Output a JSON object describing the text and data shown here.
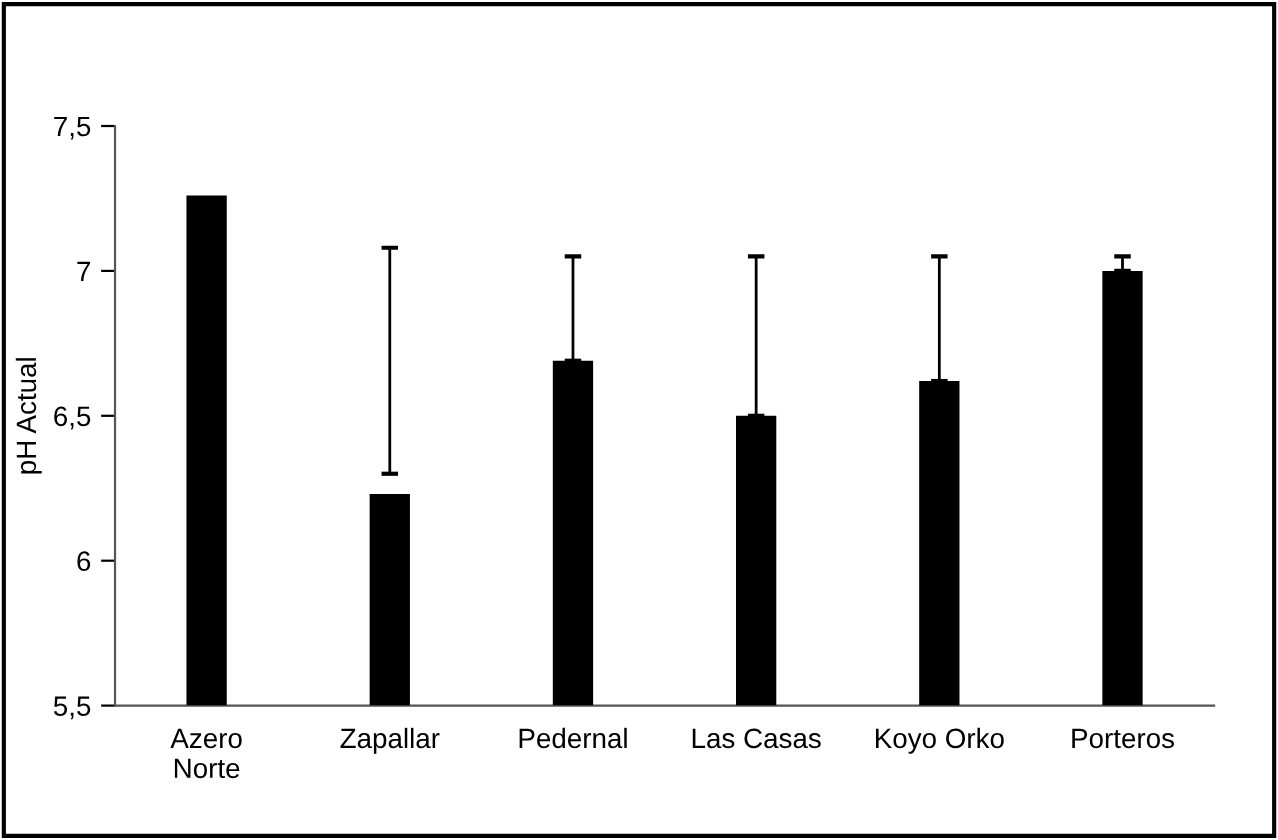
{
  "chart_data": {
    "type": "bar",
    "ylabel": "pH Actual",
    "categories": [
      "Azero\nNorte",
      "Zapallar",
      "Pedernal",
      "Las Casas",
      "Koyo Orko",
      "Porteros"
    ],
    "values": [
      7.26,
      6.23,
      6.69,
      6.5,
      6.62,
      7.0
    ],
    "errors": [
      null,
      [
        6.3,
        7.08
      ],
      [
        6.69,
        7.05
      ],
      [
        6.5,
        7.05
      ],
      [
        6.62,
        7.05
      ],
      [
        7.0,
        7.05
      ]
    ],
    "color": "#000000",
    "ylim": [
      5.5,
      7.5
    ],
    "yticks": [
      {
        "value": 5.5,
        "label": "5,5"
      },
      6,
      {
        "value": 6.5,
        "label": "6,5"
      },
      7,
      {
        "value": 7.5,
        "label": "7,5"
      }
    ],
    "grid": false,
    "legend": false
  }
}
